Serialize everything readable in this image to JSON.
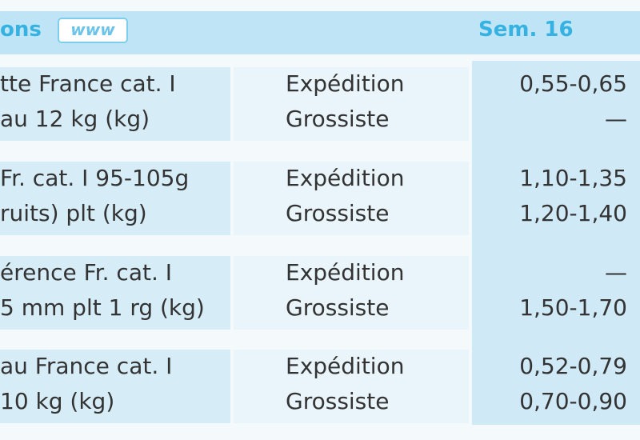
{
  "header": {
    "title": "ons",
    "icon_label": "www",
    "week": "Sem. 16"
  },
  "table": {
    "rows": [
      {
        "product": [
          "tte France cat. I",
          "au 12 kg (kg)"
        ],
        "stage": [
          "Expédition",
          "Grossiste"
        ],
        "price": [
          "0,55-0,65",
          "—"
        ]
      },
      {
        "product": [
          "Fr. cat. I 95-105g",
          "ruits) plt (kg)"
        ],
        "stage": [
          "Expédition",
          "Grossiste"
        ],
        "price": [
          "1,10-1,35",
          "1,20-1,40"
        ]
      },
      {
        "product": [
          "érence Fr. cat. I",
          "5 mm plt 1 rg (kg)"
        ],
        "stage": [
          "Expédition",
          "Grossiste"
        ],
        "price": [
          "—",
          "1,50-1,70"
        ]
      },
      {
        "product": [
          "au France cat. I",
          "10 kg (kg)"
        ],
        "stage": [
          "Expédition",
          "Grossiste"
        ],
        "price": [
          "0,52-0,79",
          "0,70-0,90"
        ]
      }
    ]
  }
}
